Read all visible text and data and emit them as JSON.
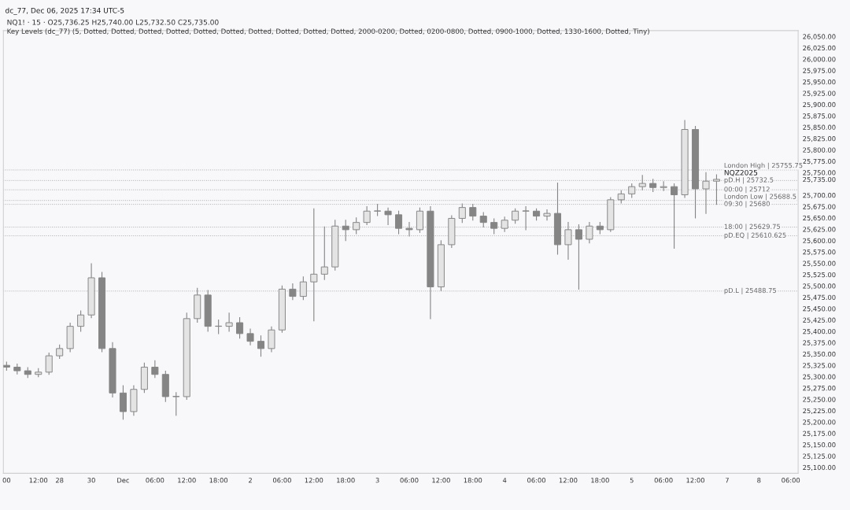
{
  "chart_data": {
    "type": "candlestick",
    "title": "NQ1! · 15 · O25,736.25 H25,740.00 L25,732.50 C25,735.00",
    "subtitle": "Key Levels (dc_77) (5, Dotted, Dotted, Dotted, Dotted, Dotted, Dotted, Dotted, Dotted, Dotted, Dotted, 2000-0200, Dotted, 0200-0800, Dotted, 0900-1000, Dotted, 1330-1600, Dotted, Tiny)",
    "annotations": [
      "dc_77, Dec 06, 2025 17:34 UTC-5",
      {
        "text": "NQZ2025",
        "y": 25735
      }
    ],
    "categories": [
      "00",
      null,
      null,
      "12:00",
      null,
      "28",
      null,
      null,
      "30",
      null,
      null,
      "Dec",
      null,
      null,
      "06:00",
      null,
      null,
      "12:00",
      null,
      null,
      "18:00",
      null,
      null,
      "2",
      null,
      null,
      "06:00",
      null,
      null,
      "12:00",
      null,
      null,
      "18:00",
      null,
      null,
      "3",
      null,
      null,
      "06:00",
      null,
      null,
      "12:00",
      null,
      null,
      "18:00",
      null,
      null,
      "4",
      null,
      null,
      "06:00",
      null,
      null,
      "12:00",
      null,
      null,
      "18:00",
      null,
      null,
      "5",
      null,
      null,
      "06:00",
      null,
      null,
      "12:00",
      null,
      null,
      "7",
      null,
      null,
      "8",
      null,
      null,
      "06:00"
    ],
    "ohlc": [
      [
        25325,
        25332,
        25314,
        25321
      ],
      [
        25321,
        25328,
        25306,
        25313
      ],
      [
        25313,
        25320,
        25298,
        25305
      ],
      [
        25305,
        25318,
        25300,
        25310
      ],
      [
        25310,
        25352,
        25305,
        25346
      ],
      [
        25346,
        25370,
        25340,
        25362
      ],
      [
        25362,
        25418,
        25355,
        25411
      ],
      [
        25411,
        25445,
        25400,
        25436
      ],
      [
        25436,
        25549,
        25430,
        25518
      ],
      [
        25518,
        25530,
        25355,
        25362
      ],
      [
        25362,
        25375,
        25255,
        25264
      ],
      [
        25264,
        25280,
        25206,
        25223
      ],
      [
        25223,
        25280,
        25215,
        25272
      ],
      [
        25272,
        25330,
        25265,
        25321
      ],
      [
        25321,
        25335,
        25298,
        25305
      ],
      [
        25305,
        25312,
        25245,
        25256
      ],
      [
        25256,
        25265,
        25215,
        25256
      ],
      [
        25256,
        25440,
        25250,
        25428
      ],
      [
        25428,
        25495,
        25420,
        25480
      ],
      [
        25480,
        25490,
        25400,
        25411
      ],
      [
        25411,
        25425,
        25395,
        25411
      ],
      [
        25411,
        25440,
        25400,
        25419
      ],
      [
        25419,
        25430,
        25385,
        25395
      ],
      [
        25395,
        25405,
        25370,
        25378
      ],
      [
        25378,
        25390,
        25345,
        25362
      ],
      [
        25362,
        25410,
        25355,
        25403
      ],
      [
        25403,
        25500,
        25398,
        25493
      ],
      [
        25493,
        25505,
        25470,
        25477
      ],
      [
        25477,
        25520,
        25470,
        25509
      ],
      [
        25509,
        25670,
        25423,
        25526
      ],
      [
        25526,
        25630,
        25514,
        25542
      ],
      [
        25542,
        25645,
        25535,
        25632
      ],
      [
        25632,
        25645,
        25600,
        25624
      ],
      [
        25624,
        25650,
        25615,
        25640
      ],
      [
        25640,
        25675,
        25635,
        25665
      ],
      [
        25665,
        25680,
        25655,
        25665
      ],
      [
        25665,
        25672,
        25635,
        25657
      ],
      [
        25657,
        25665,
        25615,
        25627
      ],
      [
        25627,
        25640,
        25610,
        25624
      ],
      [
        25624,
        25672,
        25618,
        25665
      ],
      [
        25665,
        25675,
        25428,
        25498
      ],
      [
        25498,
        25600,
        25490,
        25591
      ],
      [
        25591,
        25655,
        25585,
        25649
      ],
      [
        25649,
        25681,
        25640,
        25673
      ],
      [
        25673,
        25680,
        25645,
        25654
      ],
      [
        25654,
        25662,
        25630,
        25640
      ],
      [
        25640,
        25648,
        25615,
        25627
      ],
      [
        25627,
        25652,
        25620,
        25645
      ],
      [
        25645,
        25670,
        25638,
        25665
      ],
      [
        25665,
        25675,
        25624,
        25665
      ],
      [
        25665,
        25670,
        25645,
        25654
      ],
      [
        25654,
        25668,
        25645,
        25660
      ],
      [
        25660,
        25727,
        25570,
        25591
      ],
      [
        25591,
        25640,
        25559,
        25624
      ],
      [
        25624,
        25635,
        25493,
        25603
      ],
      [
        25603,
        25640,
        25595,
        25632
      ],
      [
        25632,
        25640,
        25615,
        25624
      ],
      [
        25624,
        25695,
        25620,
        25690
      ],
      [
        25690,
        25710,
        25683,
        25703
      ],
      [
        25703,
        25725,
        25695,
        25719
      ],
      [
        25719,
        25744,
        25712,
        25726
      ],
      [
        25726,
        25735,
        25708,
        25717
      ],
      [
        25717,
        25730,
        25710,
        25719
      ],
      [
        25719,
        25725,
        25583,
        25701
      ],
      [
        25701,
        25865,
        25695,
        25845
      ],
      [
        25845,
        25852,
        25650,
        25714
      ],
      [
        25714,
        25750,
        25660,
        25731
      ],
      [
        25731,
        25745,
        25680,
        25735
      ],
      null,
      null,
      null,
      null,
      null,
      null,
      null
    ],
    "color": "#858585",
    "ylim": [
      25087,
      26063
    ],
    "yticks": [
      {
        "value": 25100,
        "label": "25,100.00"
      },
      {
        "value": 25125,
        "label": "25,125.00"
      },
      {
        "value": 25150,
        "label": "25,150.00"
      },
      {
        "value": 25175,
        "label": "25,175.00"
      },
      {
        "value": 25200,
        "label": "25,200.00"
      },
      {
        "value": 25225,
        "label": "25,225.00"
      },
      {
        "value": 25250,
        "label": "25,250.00"
      },
      {
        "value": 25275,
        "label": "25,275.00"
      },
      {
        "value": 25300,
        "label": "25,300.00"
      },
      {
        "value": 25325,
        "label": "25,325.00"
      },
      {
        "value": 25350,
        "label": "25,350.00"
      },
      {
        "value": 25375,
        "label": "25,375.00"
      },
      {
        "value": 25400,
        "label": "25,400.00"
      },
      {
        "value": 25425,
        "label": "25,425.00"
      },
      {
        "value": 25450,
        "label": "25,450.00"
      },
      {
        "value": 25475,
        "label": "25,475.00"
      },
      {
        "value": 25500,
        "label": "25,500.00"
      },
      {
        "value": 25525,
        "label": "25,525.00"
      },
      {
        "value": 25550,
        "label": "25,550.00"
      },
      {
        "value": 25575,
        "label": "25,575.00"
      },
      {
        "value": 25600,
        "label": "25,600.00"
      },
      {
        "value": 25625,
        "label": "25,625.00"
      },
      {
        "value": 25650,
        "label": "25,650.00"
      },
      {
        "value": 25675,
        "label": "25,675.00"
      },
      {
        "value": 25700,
        "label": "25,700.00"
      },
      {
        "value": 25735,
        "label": "25,735.00"
      },
      {
        "value": 25750,
        "label": "25,750.00"
      },
      {
        "value": 25775,
        "label": "25,775.00"
      },
      {
        "value": 25800,
        "label": "25,800.00"
      },
      {
        "value": 25825,
        "label": "25,825.00"
      },
      {
        "value": 25850,
        "label": "25,850.00"
      },
      {
        "value": 25875,
        "label": "25,875.00"
      },
      {
        "value": 25900,
        "label": "25,900.00"
      },
      {
        "value": 25925,
        "label": "25,925.00"
      },
      {
        "value": 25950,
        "label": "25,950.00"
      },
      {
        "value": 25975,
        "label": "25,975.00"
      },
      {
        "value": 26000,
        "label": "26,000.00"
      },
      {
        "value": 26025,
        "label": "26,025.00"
      },
      {
        "value": 26050,
        "label": "26,050.00"
      }
    ],
    "ref_lines": [
      {
        "axis": "y",
        "value": 25755.75,
        "label": "London High | 25755.75",
        "color": "#aaaaaa",
        "line_style": "dotted"
      },
      {
        "axis": "y",
        "value": 25732.5,
        "label": "pD.H | 25732.5",
        "color": "#aaaaaa",
        "line_style": "dotted"
      },
      {
        "axis": "y",
        "value": 25712,
        "label": "00:00 | 25712",
        "color": "#aaaaaa",
        "line_style": "dotted"
      },
      {
        "axis": "y",
        "value": 25688.5,
        "label": "London Low | 25688.5",
        "color": "#aaaaaa",
        "line_style": "dotted"
      },
      {
        "axis": "y",
        "value": 25680,
        "label": "09:30 | 25680",
        "color": "#aaaaaa",
        "line_style": "dotted"
      },
      {
        "axis": "y",
        "value": 25629.75,
        "label": "18:00 | 25629.75",
        "color": "#aaaaaa",
        "line_style": "dotted"
      },
      {
        "axis": "y",
        "value": 25610.625,
        "label": "pD.EQ | 25610.625",
        "color": "#aaaaaa",
        "line_style": "dotted"
      },
      {
        "axis": "y",
        "value": 25488.75,
        "label": "pD.L | 25488.75",
        "color": "#aaaaaa",
        "line_style": "dotted"
      }
    ],
    "grid": false,
    "legend": false
  }
}
